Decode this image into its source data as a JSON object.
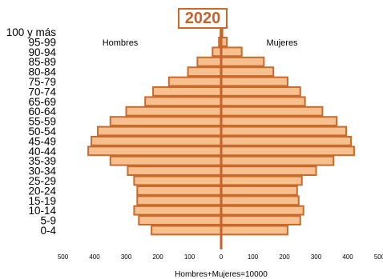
{
  "chart_data": {
    "type": "bar",
    "title": "2020",
    "left_label": "Hombres",
    "right_label": "Mujeres",
    "xlabel": "Hombres+Mujeres=10000",
    "xlim": [
      -500,
      500
    ],
    "x_ticks": [
      "500",
      "400",
      "300",
      "200",
      "100",
      "0",
      "100",
      "200",
      "300",
      "400",
      "500"
    ],
    "categories": [
      "100 y más",
      "95-99",
      "90-94",
      "85-89",
      "80-84",
      "75-79",
      "70-74",
      "65-69",
      "60-64",
      "55-59",
      "50-54",
      "45-49",
      "40-44",
      "35-39",
      "30-34",
      "25-29",
      "20-24",
      "15-19",
      "10-14",
      "5-9",
      "0-4"
    ],
    "series": [
      {
        "name": "Hombres",
        "values": [
          2,
          7,
          27,
          75,
          105,
          165,
          215,
          240,
          300,
          350,
          390,
          410,
          420,
          350,
          295,
          275,
          265,
          265,
          275,
          260,
          220
        ]
      },
      {
        "name": "Mujeres",
        "values": [
          4,
          18,
          65,
          135,
          165,
          210,
          250,
          265,
          320,
          365,
          395,
          410,
          420,
          355,
          300,
          255,
          240,
          245,
          260,
          250,
          210
        ]
      }
    ],
    "colors": {
      "fill": "#f9c08f",
      "edge": "#c86a2b",
      "axis": "#c8602a",
      "title": "#c8602a"
    }
  }
}
